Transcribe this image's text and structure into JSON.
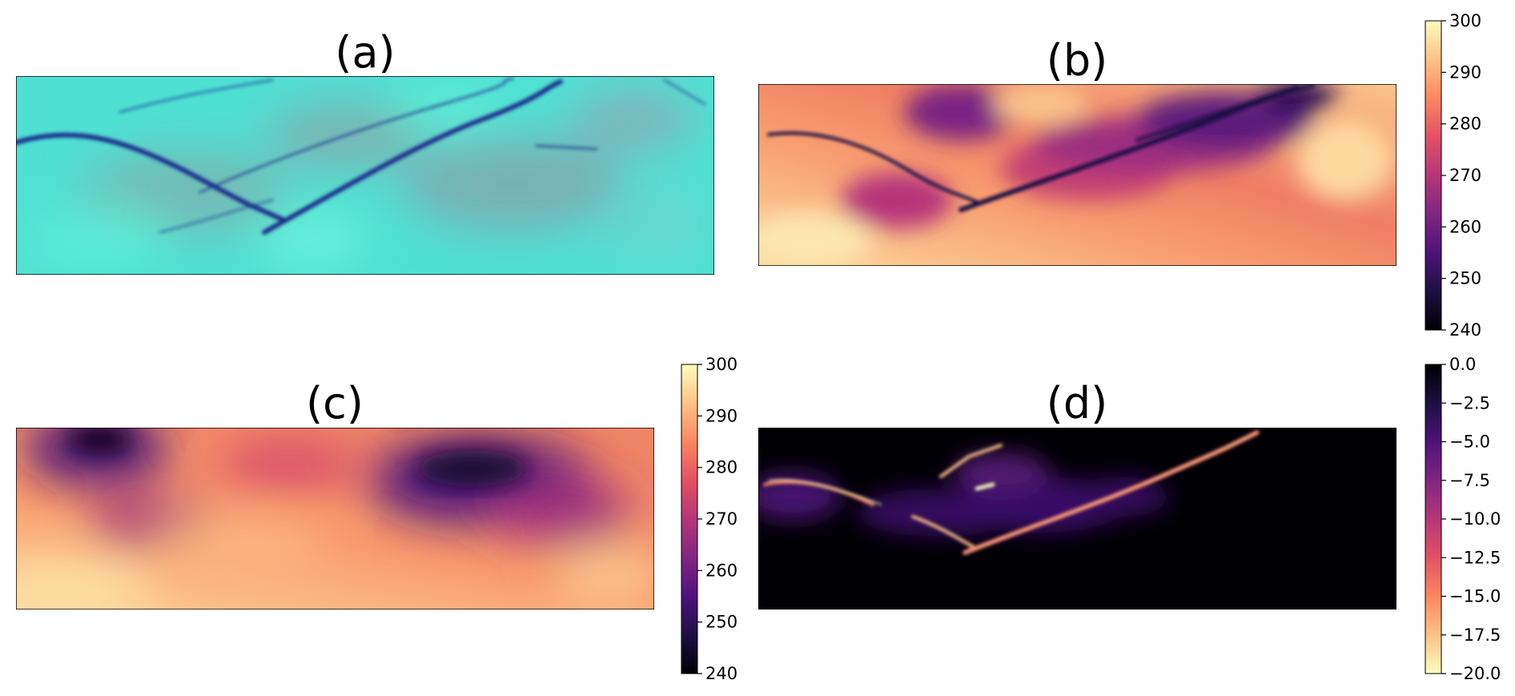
{
  "figure": {
    "panels": [
      {
        "label": "(a)",
        "kind": "rgb-image"
      },
      {
        "label": "(b)",
        "kind": "heatmap",
        "colormap": "magma"
      },
      {
        "label": "(c)",
        "kind": "heatmap",
        "colormap": "magma"
      },
      {
        "label": "(d)",
        "kind": "heatmap",
        "colormap": "magma_r"
      }
    ]
  },
  "colors": {
    "magma": [
      "#000004",
      "#1c1044",
      "#4f127b",
      "#812581",
      "#b5367a",
      "#e55064",
      "#fb8761",
      "#fec287",
      "#fcfdbf"
    ],
    "rgb_base": "#4fe0d4",
    "rgb_feature": "#1a2d8a",
    "frame": "#000000"
  },
  "chart_data": [
    {
      "type": "heatmap",
      "title": "(a)",
      "content": "false-colour RGB image, cyan background with dark blue linear streaks",
      "colorbar": null
    },
    {
      "type": "heatmap",
      "title": "(b)",
      "colormap": "magma",
      "colorbar": {
        "ticks": [
          "240",
          "250",
          "260",
          "270",
          "280",
          "290",
          "300"
        ],
        "range": [
          240,
          300
        ]
      }
    },
    {
      "type": "heatmap",
      "title": "(c)",
      "colormap": "magma",
      "colorbar": {
        "ticks": [
          "240",
          "250",
          "260",
          "270",
          "280",
          "290",
          "300"
        ],
        "range": [
          240,
          300
        ]
      }
    },
    {
      "type": "heatmap",
      "title": "(d)",
      "colormap": "magma_r",
      "colorbar": {
        "ticks": [
          "−20.0",
          "−17.5",
          "−15.0",
          "−12.5",
          "−10.0",
          "−7.5",
          "−5.0",
          "−2.5",
          "0.0"
        ],
        "range": [
          -20,
          0
        ]
      }
    }
  ]
}
